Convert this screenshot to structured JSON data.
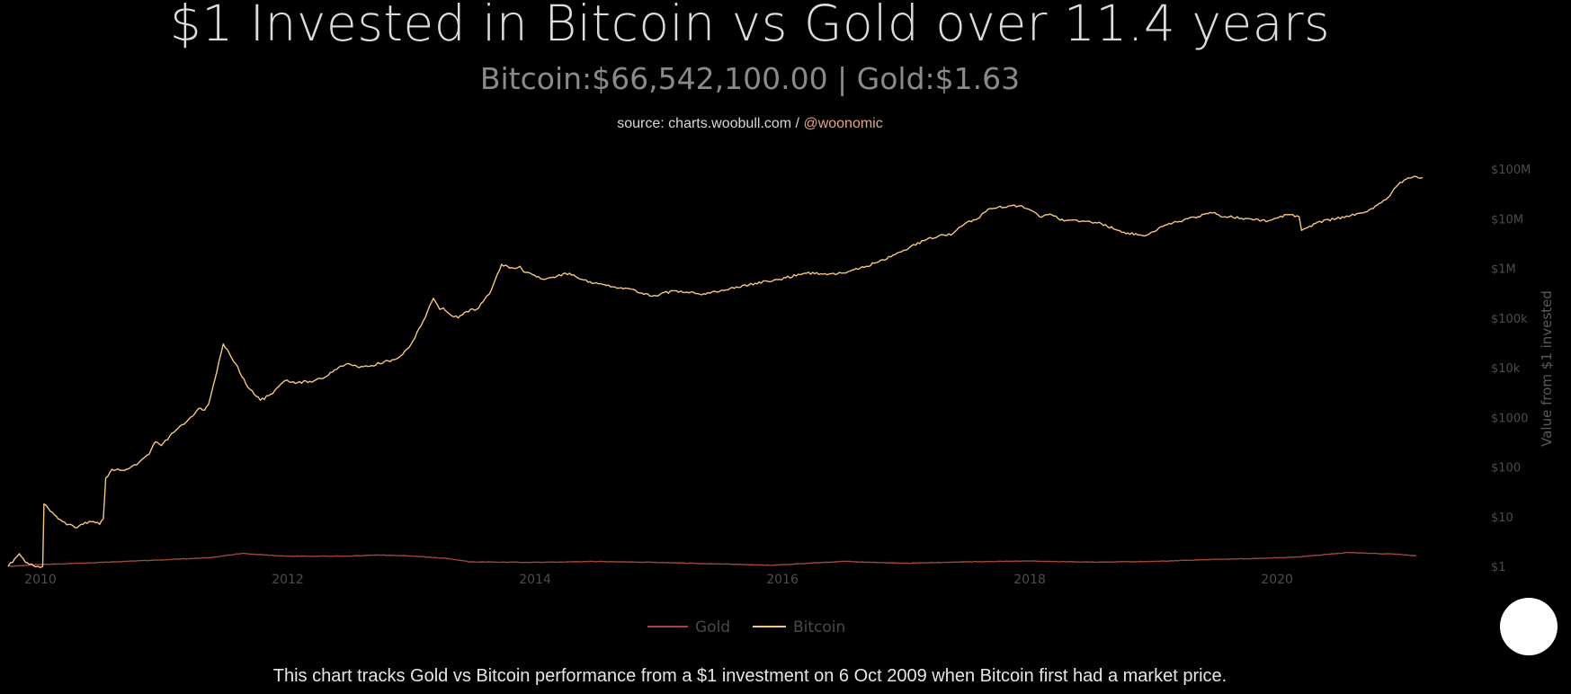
{
  "header": {
    "title": "$1 Invested in Bitcoin vs Gold over 11.4 years",
    "subtitle": "Bitcoin:$66,542,100.00 | Gold:$1.63",
    "source_prefix": "source: charts.woobull.com / ",
    "source_handle": "@woonomic"
  },
  "footer": {
    "note": "This chart tracks Gold vs Bitcoin performance from a $1 investment on 6 Oct 2009 when Bitcoin first had a market price."
  },
  "chart_data": {
    "type": "line",
    "title": "$1 Invested in Bitcoin vs Gold over 11.4 years",
    "xlabel": "",
    "ylabel": "Value from $1 invested",
    "yscale": "log",
    "xlim": [
      2009.76,
      2021.25
    ],
    "ylim": [
      1,
      100000000
    ],
    "x_ticks": [
      2010,
      2012,
      2014,
      2016,
      2018,
      2020
    ],
    "x_tick_labels": [
      "2010",
      "2012",
      "2014",
      "2016",
      "2018",
      "2020"
    ],
    "y_ticks": [
      1,
      10,
      100,
      1000,
      10000,
      100000,
      1000000,
      10000000,
      100000000
    ],
    "y_tick_labels": [
      "$1",
      "$10",
      "$100",
      "$1000",
      "$10k",
      "$100k",
      "$1M",
      "$10M",
      "$100M"
    ],
    "grid": false,
    "legend": {
      "position": "bottom-center",
      "entries": [
        "Gold",
        "Bitcoin"
      ]
    },
    "series": [
      {
        "name": "Gold",
        "color": "#a0473a",
        "x": [
          2009.76,
          2010.0,
          2010.5,
          2011.0,
          2011.4,
          2011.65,
          2012.0,
          2012.5,
          2012.75,
          2013.0,
          2013.3,
          2013.5,
          2014.0,
          2014.5,
          2015.0,
          2015.5,
          2015.95,
          2016.5,
          2017.0,
          2017.5,
          2018.0,
          2018.5,
          2019.0,
          2019.5,
          2019.9,
          2020.2,
          2020.6,
          2021.0,
          2021.15
        ],
        "values": [
          1.0,
          1.08,
          1.2,
          1.35,
          1.5,
          1.82,
          1.6,
          1.6,
          1.7,
          1.62,
          1.45,
          1.23,
          1.2,
          1.25,
          1.2,
          1.12,
          1.05,
          1.26,
          1.15,
          1.23,
          1.28,
          1.22,
          1.25,
          1.38,
          1.45,
          1.55,
          1.9,
          1.75,
          1.63
        ]
      },
      {
        "name": "Bitcoin",
        "color": "#f5c77e",
        "x": [
          2009.76,
          2009.85,
          2009.9,
          2010.0,
          2010.04,
          2010.05,
          2010.1,
          2010.2,
          2010.3,
          2010.35,
          2010.45,
          2010.5,
          2010.53,
          2010.55,
          2010.6,
          2010.7,
          2010.8,
          2010.9,
          2010.95,
          2011.0,
          2011.1,
          2011.2,
          2011.3,
          2011.35,
          2011.38,
          2011.43,
          2011.5,
          2011.6,
          2011.7,
          2011.8,
          2011.9,
          2012.0,
          2012.1,
          2012.2,
          2012.3,
          2012.4,
          2012.5,
          2012.6,
          2012.7,
          2012.8,
          2012.9,
          2013.0,
          2013.1,
          2013.2,
          2013.25,
          2013.28,
          2013.33,
          2013.4,
          2013.5,
          2013.55,
          2013.65,
          2013.75,
          2013.85,
          2013.9,
          2013.93,
          2014.0,
          2014.1,
          2014.2,
          2014.3,
          2014.4,
          2014.5,
          2014.6,
          2014.7,
          2014.8,
          2014.9,
          2015.0,
          2015.05,
          2015.2,
          2015.4,
          2015.6,
          2015.8,
          2015.9,
          2016.0,
          2016.2,
          2016.45,
          2016.5,
          2016.7,
          2016.9,
          2017.0,
          2017.2,
          2017.4,
          2017.5,
          2017.6,
          2017.7,
          2017.85,
          2017.96,
          2018.05,
          2018.1,
          2018.2,
          2018.3,
          2018.45,
          2018.6,
          2018.8,
          2018.88,
          2018.95,
          2019.1,
          2019.3,
          2019.5,
          2019.6,
          2019.8,
          2019.95,
          2020.1,
          2020.2,
          2020.22,
          2020.35,
          2020.5,
          2020.7,
          2020.8,
          2020.9,
          2021.0,
          2021.05,
          2021.15,
          2021.2
        ],
        "values": [
          1,
          1.8,
          1.2,
          1.0,
          1.0,
          18,
          13,
          8,
          6,
          7,
          8,
          7,
          9,
          60,
          90,
          85,
          110,
          180,
          320,
          270,
          500,
          800,
          1500,
          1400,
          1800,
          5500,
          30000,
          12000,
          4000,
          2200,
          3000,
          5500,
          5000,
          5300,
          6000,
          9000,
          12000,
          10000,
          11000,
          13000,
          15000,
          25000,
          70000,
          250000,
          150000,
          160000,
          120000,
          100000,
          150000,
          150000,
          300000,
          1200000,
          1000000,
          1100000,
          850000,
          750000,
          600000,
          700000,
          800000,
          600000,
          500000,
          450000,
          400000,
          380000,
          300000,
          280000,
          320000,
          350000,
          300000,
          400000,
          500000,
          550000,
          600000,
          800000,
          750000,
          800000,
          1100000,
          1700000,
          2300000,
          4000000,
          5000000,
          8000000,
          10000000,
          16000000,
          18000000,
          18000000,
          14000000,
          11000000,
          12000000,
          9000000,
          9000000,
          8000000,
          5000000,
          5000000,
          4500000,
          7000000,
          10000000,
          13000000,
          11000000,
          10000000,
          9000000,
          12000000,
          11000000,
          5800000,
          8500000,
          10000000,
          13000000,
          16000000,
          24000000,
          48000000,
          60000000,
          70000000,
          66542100
        ]
      }
    ]
  }
}
